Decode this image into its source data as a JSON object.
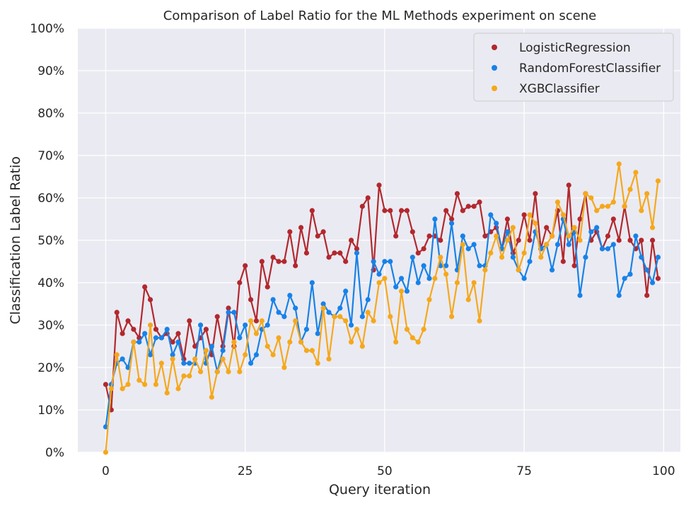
{
  "chart_data": {
    "type": "line",
    "title": "Comparison of Label Ratio for the ML Methods experiment on scene",
    "xlabel": "Query iteration",
    "ylabel": "Classification Label Ratio",
    "xlim": [
      -5,
      103
    ],
    "ylim": [
      0,
      1
    ],
    "xticks": [
      0,
      25,
      50,
      75,
      100
    ],
    "xtick_labels": [
      "0",
      "25",
      "50",
      "75",
      "100"
    ],
    "yticks": [
      0,
      0.1,
      0.2,
      0.3,
      0.4,
      0.5,
      0.6,
      0.7,
      0.8,
      0.9,
      1.0
    ],
    "ytick_labels": [
      "0%",
      "10%",
      "20%",
      "30%",
      "40%",
      "50%",
      "60%",
      "70%",
      "80%",
      "90%",
      "100%"
    ],
    "grid": true,
    "background": "#eaeaf2",
    "legend_position": "top-right",
    "series": [
      {
        "name": "LogisticRegression",
        "color": "#b2282d",
        "values": [
          0.16,
          0.1,
          0.33,
          0.28,
          0.31,
          0.29,
          0.27,
          0.39,
          0.36,
          0.29,
          0.27,
          0.28,
          0.26,
          0.28,
          0.22,
          0.31,
          0.25,
          0.27,
          0.29,
          0.23,
          0.32,
          0.25,
          0.34,
          0.25,
          0.4,
          0.44,
          0.36,
          0.31,
          0.45,
          0.39,
          0.46,
          0.45,
          0.45,
          0.52,
          0.44,
          0.53,
          0.47,
          0.57,
          0.51,
          0.52,
          0.46,
          0.47,
          0.47,
          0.45,
          0.5,
          0.48,
          0.58,
          0.6,
          0.43,
          0.63,
          0.57,
          0.57,
          0.51,
          0.57,
          0.57,
          0.52,
          0.47,
          0.48,
          0.51,
          0.51,
          0.5,
          0.57,
          0.55,
          0.61,
          0.57,
          0.58,
          0.58,
          0.59,
          0.51,
          0.52,
          0.53,
          0.48,
          0.55,
          0.47,
          0.5,
          0.56,
          0.5,
          0.61,
          0.48,
          0.53,
          0.51,
          0.57,
          0.45,
          0.63,
          0.44,
          0.55,
          0.61,
          0.5,
          0.52,
          0.48,
          0.51,
          0.55,
          0.5,
          0.58,
          0.5,
          0.48,
          0.5,
          0.37,
          0.5,
          0.41
        ]
      },
      {
        "name": "RandomForestClassifier",
        "color": "#1782e8",
        "values": [
          0.06,
          0.16,
          0.21,
          0.22,
          0.2,
          0.26,
          0.26,
          0.28,
          0.23,
          0.27,
          0.27,
          0.29,
          0.23,
          0.26,
          0.21,
          0.21,
          0.21,
          0.3,
          0.21,
          0.25,
          0.19,
          0.24,
          0.33,
          0.33,
          0.27,
          0.3,
          0.21,
          0.23,
          0.29,
          0.3,
          0.36,
          0.33,
          0.32,
          0.37,
          0.34,
          0.26,
          0.29,
          0.4,
          0.28,
          0.35,
          0.33,
          0.32,
          0.34,
          0.38,
          0.3,
          0.47,
          0.32,
          0.36,
          0.45,
          0.42,
          0.45,
          0.45,
          0.39,
          0.41,
          0.38,
          0.46,
          0.4,
          0.44,
          0.41,
          0.55,
          0.44,
          0.44,
          0.54,
          0.43,
          0.51,
          0.48,
          0.49,
          0.44,
          0.44,
          0.56,
          0.54,
          0.48,
          0.52,
          0.46,
          0.43,
          0.41,
          0.45,
          0.52,
          0.48,
          0.49,
          0.43,
          0.49,
          0.55,
          0.49,
          0.52,
          0.37,
          0.46,
          0.52,
          0.53,
          0.48,
          0.48,
          0.49,
          0.37,
          0.41,
          0.42,
          0.51,
          0.46,
          0.43,
          0.4,
          0.46
        ]
      },
      {
        "name": "XGBClassifier",
        "color": "#f5a81c",
        "values": [
          0.0,
          0.15,
          0.23,
          0.15,
          0.16,
          0.26,
          0.17,
          0.16,
          0.3,
          0.16,
          0.21,
          0.14,
          0.22,
          0.15,
          0.18,
          0.18,
          0.22,
          0.19,
          0.24,
          0.13,
          0.19,
          0.22,
          0.19,
          0.26,
          0.19,
          0.23,
          0.31,
          0.28,
          0.31,
          0.25,
          0.23,
          0.27,
          0.2,
          0.26,
          0.31,
          0.26,
          0.24,
          0.24,
          0.21,
          0.34,
          0.22,
          0.32,
          0.32,
          0.31,
          0.26,
          0.29,
          0.25,
          0.33,
          0.31,
          0.4,
          0.41,
          0.32,
          0.26,
          0.38,
          0.29,
          0.27,
          0.26,
          0.29,
          0.36,
          0.41,
          0.46,
          0.42,
          0.32,
          0.4,
          0.49,
          0.36,
          0.4,
          0.31,
          0.43,
          0.47,
          0.51,
          0.46,
          0.5,
          0.53,
          0.43,
          0.47,
          0.56,
          0.54,
          0.46,
          0.49,
          0.51,
          0.59,
          0.56,
          0.51,
          0.53,
          0.5,
          0.61,
          0.6,
          0.57,
          0.58,
          0.58,
          0.59,
          0.68,
          0.58,
          0.62,
          0.66,
          0.57,
          0.61,
          0.53,
          0.64
        ]
      }
    ]
  }
}
